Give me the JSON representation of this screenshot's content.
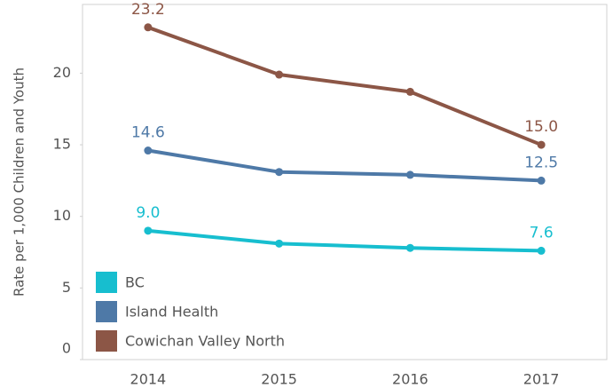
{
  "chart_data": {
    "type": "line",
    "y_label": "Rate per 1,000 Children and Youth",
    "categories": [
      "2014",
      "2015",
      "2016",
      "2017"
    ],
    "series": [
      {
        "name": "BC",
        "color": "#17becf",
        "values": [
          9.0,
          8.1,
          7.8,
          7.6
        ],
        "value_labels": [
          "9.0",
          null,
          null,
          "7.6"
        ]
      },
      {
        "name": "Island Health",
        "color": "#4e79a7",
        "values": [
          14.6,
          13.1,
          12.9,
          12.5
        ],
        "value_labels": [
          "14.6",
          null,
          null,
          "12.5"
        ]
      },
      {
        "name": "Cowichan Valley North",
        "color": "#8c5646",
        "values": [
          23.2,
          19.9,
          18.7,
          15.0
        ],
        "value_labels": [
          "23.2",
          null,
          null,
          "15.0"
        ]
      }
    ],
    "ylim": [
      0,
      24.8
    ],
    "yticks": [
      0,
      5,
      10,
      15,
      20
    ],
    "grid": false,
    "legend": "lower left"
  }
}
